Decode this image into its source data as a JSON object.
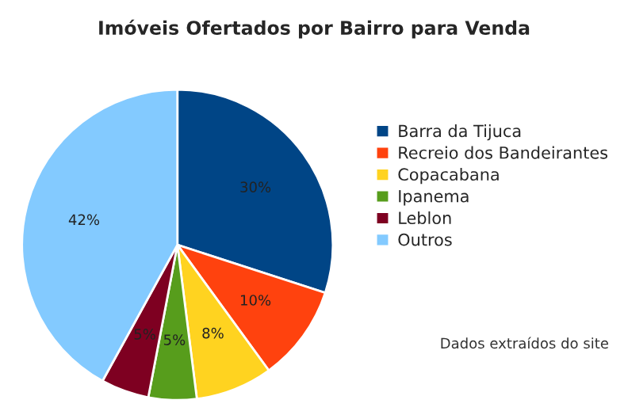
{
  "chart_data": {
    "type": "pie",
    "title": "Imóveis Ofertados por Bairro para Venda",
    "categories": [
      "Barra da Tijuca",
      "Recreio dos Bandeirantes",
      "Copacabana",
      "Ipanema",
      "Leblon",
      "Outros"
    ],
    "values": [
      30,
      10,
      8,
      5,
      5,
      42
    ],
    "value_labels": [
      "30%",
      "10%",
      "8%",
      "5%",
      "5%",
      "42%"
    ],
    "colors": [
      "#004586",
      "#ff420e",
      "#ffd320",
      "#579d1c",
      "#7e0021",
      "#83caff"
    ],
    "legend": "right",
    "annotations": [
      "Dados extraídos do site"
    ]
  }
}
